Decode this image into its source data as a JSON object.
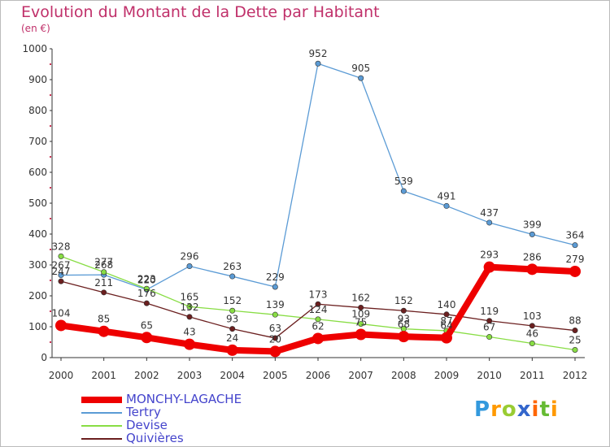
{
  "chart_data": {
    "type": "line",
    "title": "Evolution du Montant de la Dette par Habitant",
    "subtitle": "(en €)",
    "categories": [
      "2000",
      "2001",
      "2002",
      "2003",
      "2004",
      "2005",
      "2006",
      "2007",
      "2008",
      "2009",
      "2010",
      "2011",
      "2012"
    ],
    "yticks": [
      "0",
      "100",
      "200",
      "300",
      "400",
      "500",
      "600",
      "700",
      "800",
      "900",
      "1000"
    ],
    "ylim": [
      0,
      1000
    ],
    "grid": false,
    "legend_position": "bottom-left",
    "series": [
      {
        "name": "MONCHY-LAGACHE",
        "color": "#ee0000",
        "values": [
          104,
          85,
          65,
          43,
          24,
          20,
          62,
          75,
          68,
          64,
          293,
          286,
          279
        ],
        "labels": [
          "104",
          "85",
          "65",
          "43",
          "24",
          "20",
          "62",
          "75",
          "68",
          "64",
          "293",
          "286",
          "279"
        ]
      },
      {
        "name": "Tertry",
        "color": "#5b9bd5",
        "values": [
          267,
          268,
          220,
          296,
          263,
          229,
          952,
          905,
          539,
          491,
          437,
          399,
          364
        ],
        "labels": [
          "267",
          "268",
          "220",
          "296",
          "263",
          "229",
          "952",
          "905",
          "539",
          "491",
          "437",
          "399",
          "364"
        ]
      },
      {
        "name": "Devise",
        "color": "#88dd44",
        "values": [
          328,
          277,
          223,
          165,
          152,
          139,
          124,
          109,
          93,
          87,
          67,
          46,
          25
        ],
        "labels": [
          "328",
          "277",
          "223",
          "165",
          "152",
          "139",
          "124",
          "109",
          "93",
          "87",
          "67",
          "46",
          "25"
        ]
      },
      {
        "name": "Quivières",
        "color": "#6b1f1f",
        "values": [
          247,
          211,
          176,
          132,
          93,
          63,
          173,
          162,
          152,
          140,
          119,
          103,
          88
        ],
        "labels": [
          "247",
          "211",
          "176",
          "132",
          "93",
          "63",
          "173",
          "162",
          "152",
          "140",
          "119",
          "103",
          "88"
        ]
      }
    ]
  },
  "brand": {
    "text": "Proxiti",
    "letters": [
      "P",
      "r",
      "o",
      "x",
      "i",
      "t",
      "i"
    ],
    "colors": [
      "#3399dd",
      "#ff9900",
      "#99cc33",
      "#3366cc",
      "#ff6600",
      "#66bb33",
      "#ff9900"
    ]
  }
}
